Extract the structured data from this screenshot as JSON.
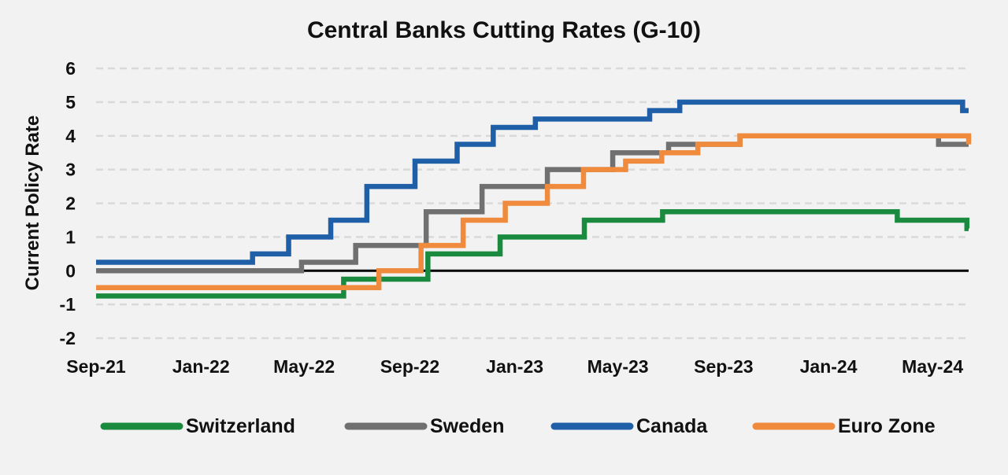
{
  "chart_data": {
    "type": "line",
    "step": true,
    "title": "Central Banks Cutting Rates (G-10)",
    "xlabel": "",
    "ylabel": "Current Policy Rate",
    "ylim": [
      -2,
      6
    ],
    "y_ticks": [
      6,
      5,
      4,
      3,
      2,
      1,
      0,
      -1,
      -2
    ],
    "x_range": [
      "2021-09-01",
      "2024-06-12"
    ],
    "x_ticks": [
      {
        "date": "2021-09-01",
        "label": "Sep-21"
      },
      {
        "date": "2022-01-01",
        "label": "Jan-22"
      },
      {
        "date": "2022-05-01",
        "label": "May-22"
      },
      {
        "date": "2022-09-01",
        "label": "Sep-22"
      },
      {
        "date": "2023-01-01",
        "label": "Jan-23"
      },
      {
        "date": "2023-05-01",
        "label": "May-23"
      },
      {
        "date": "2023-09-01",
        "label": "Sep-23"
      },
      {
        "date": "2024-01-01",
        "label": "Jan-24"
      },
      {
        "date": "2024-05-01",
        "label": "May-24"
      }
    ],
    "grid": {
      "horizontal": true,
      "style": "dashed"
    },
    "zero_line": true,
    "legend": {
      "position": "bottom"
    },
    "series": [
      {
        "name": "Switzerland",
        "color": "#1a8a3f",
        "points": [
          [
            "2021-09-01",
            -0.75
          ],
          [
            "2022-06-16",
            -0.25
          ],
          [
            "2022-09-22",
            0.5
          ],
          [
            "2022-12-15",
            1.0
          ],
          [
            "2023-03-23",
            1.5
          ],
          [
            "2023-06-22",
            1.75
          ],
          [
            "2024-03-21",
            1.5
          ],
          [
            "2024-06-10",
            1.25
          ]
        ],
        "end": "2024-06-12"
      },
      {
        "name": "Sweden",
        "color": "#707070",
        "points": [
          [
            "2021-09-01",
            0.0
          ],
          [
            "2022-04-28",
            0.25
          ],
          [
            "2022-06-30",
            0.75
          ],
          [
            "2022-09-20",
            1.75
          ],
          [
            "2022-11-24",
            2.5
          ],
          [
            "2023-02-08",
            3.0
          ],
          [
            "2023-04-25",
            3.5
          ],
          [
            "2023-06-29",
            3.75
          ],
          [
            "2023-09-20",
            4.0
          ],
          [
            "2024-05-08",
            3.75
          ]
        ],
        "end": "2024-06-12"
      },
      {
        "name": "Canada",
        "color": "#1e5fa8",
        "points": [
          [
            "2021-09-01",
            0.25
          ],
          [
            "2022-03-02",
            0.5
          ],
          [
            "2022-04-13",
            1.0
          ],
          [
            "2022-06-01",
            1.5
          ],
          [
            "2022-07-13",
            2.5
          ],
          [
            "2022-09-07",
            3.25
          ],
          [
            "2022-10-26",
            3.75
          ],
          [
            "2022-12-07",
            4.25
          ],
          [
            "2023-01-25",
            4.5
          ],
          [
            "2023-06-07",
            4.75
          ],
          [
            "2023-07-12",
            5.0
          ],
          [
            "2024-06-05",
            4.75
          ]
        ],
        "end": "2024-06-12"
      },
      {
        "name": "Euro Zone",
        "color": "#f08a3c",
        "points": [
          [
            "2021-09-01",
            -0.5
          ],
          [
            "2022-07-27",
            0.0
          ],
          [
            "2022-09-14",
            0.75
          ],
          [
            "2022-11-02",
            1.5
          ],
          [
            "2022-12-21",
            2.0
          ],
          [
            "2023-02-08",
            2.5
          ],
          [
            "2023-03-22",
            3.0
          ],
          [
            "2023-05-10",
            3.25
          ],
          [
            "2023-06-21",
            3.5
          ],
          [
            "2023-08-02",
            3.75
          ],
          [
            "2023-09-20",
            4.0
          ],
          [
            "2024-06-12",
            3.75
          ]
        ],
        "end": "2024-06-12"
      }
    ]
  }
}
